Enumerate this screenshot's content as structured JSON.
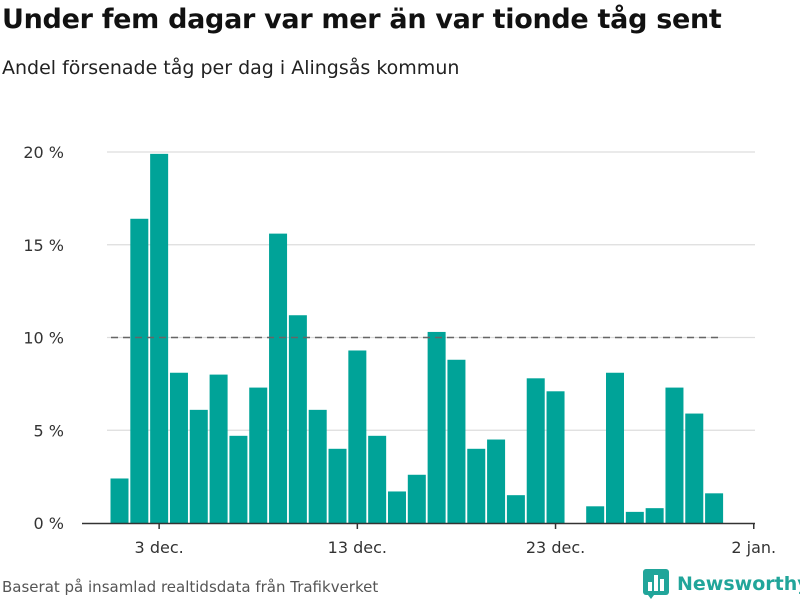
{
  "title": "Under fem dagar var mer än var tionde tåg sent",
  "subtitle": "Andel försenade tåg per dag i Alingsås kommun",
  "source": "Baserat på insamlad realtidsdata från Trafikverket",
  "brand": {
    "name": "Newsworthy",
    "icon": "bar-chart-logo-icon",
    "color": "#21a59a"
  },
  "chart_data": {
    "type": "bar",
    "x_axis": "date",
    "bar_color": "#00a398",
    "reference_line": {
      "value": 10,
      "style": "dashed",
      "color": "#666666"
    },
    "ylim": [
      0,
      20
    ],
    "yticks": [
      {
        "value": 0,
        "label": "0 %"
      },
      {
        "value": 5,
        "label": "5 %"
      },
      {
        "value": 10,
        "label": "10 %"
      },
      {
        "value": 15,
        "label": "15 %"
      },
      {
        "value": 20,
        "label": "20 %"
      }
    ],
    "xticks": [
      {
        "date": "2023-12-03",
        "label": "3 dec."
      },
      {
        "date": "2023-12-13",
        "label": "13 dec."
      },
      {
        "date": "2023-12-23",
        "label": "23 dec."
      },
      {
        "date": "2024-01-02",
        "label": "2 jan."
      }
    ],
    "grid": true,
    "points": [
      {
        "date": "2023-12-01",
        "value": 2.4
      },
      {
        "date": "2023-12-02",
        "value": 16.4
      },
      {
        "date": "2023-12-03",
        "value": 19.9
      },
      {
        "date": "2023-12-04",
        "value": 8.1
      },
      {
        "date": "2023-12-05",
        "value": 6.1
      },
      {
        "date": "2023-12-06",
        "value": 8.0
      },
      {
        "date": "2023-12-07",
        "value": 4.7
      },
      {
        "date": "2023-12-08",
        "value": 7.3
      },
      {
        "date": "2023-12-09",
        "value": 15.6
      },
      {
        "date": "2023-12-10",
        "value": 11.2
      },
      {
        "date": "2023-12-11",
        "value": 6.1
      },
      {
        "date": "2023-12-12",
        "value": 4.0
      },
      {
        "date": "2023-12-13",
        "value": 9.3
      },
      {
        "date": "2023-12-14",
        "value": 4.7
      },
      {
        "date": "2023-12-15",
        "value": 1.7
      },
      {
        "date": "2023-12-16",
        "value": 2.6
      },
      {
        "date": "2023-12-17",
        "value": 10.3
      },
      {
        "date": "2023-12-18",
        "value": 8.8
      },
      {
        "date": "2023-12-19",
        "value": 4.0
      },
      {
        "date": "2023-12-20",
        "value": 4.5
      },
      {
        "date": "2023-12-21",
        "value": 1.5
      },
      {
        "date": "2023-12-22",
        "value": 7.8
      },
      {
        "date": "2023-12-23",
        "value": 7.1
      },
      {
        "date": "2023-12-24",
        "value": 0
      },
      {
        "date": "2023-12-25",
        "value": 0.9
      },
      {
        "date": "2023-12-26",
        "value": 8.1
      },
      {
        "date": "2023-12-27",
        "value": 0.6
      },
      {
        "date": "2023-12-28",
        "value": 0.8
      },
      {
        "date": "2023-12-29",
        "value": 7.3
      },
      {
        "date": "2023-12-30",
        "value": 5.9
      },
      {
        "date": "2023-12-31",
        "value": 1.6
      }
    ]
  }
}
